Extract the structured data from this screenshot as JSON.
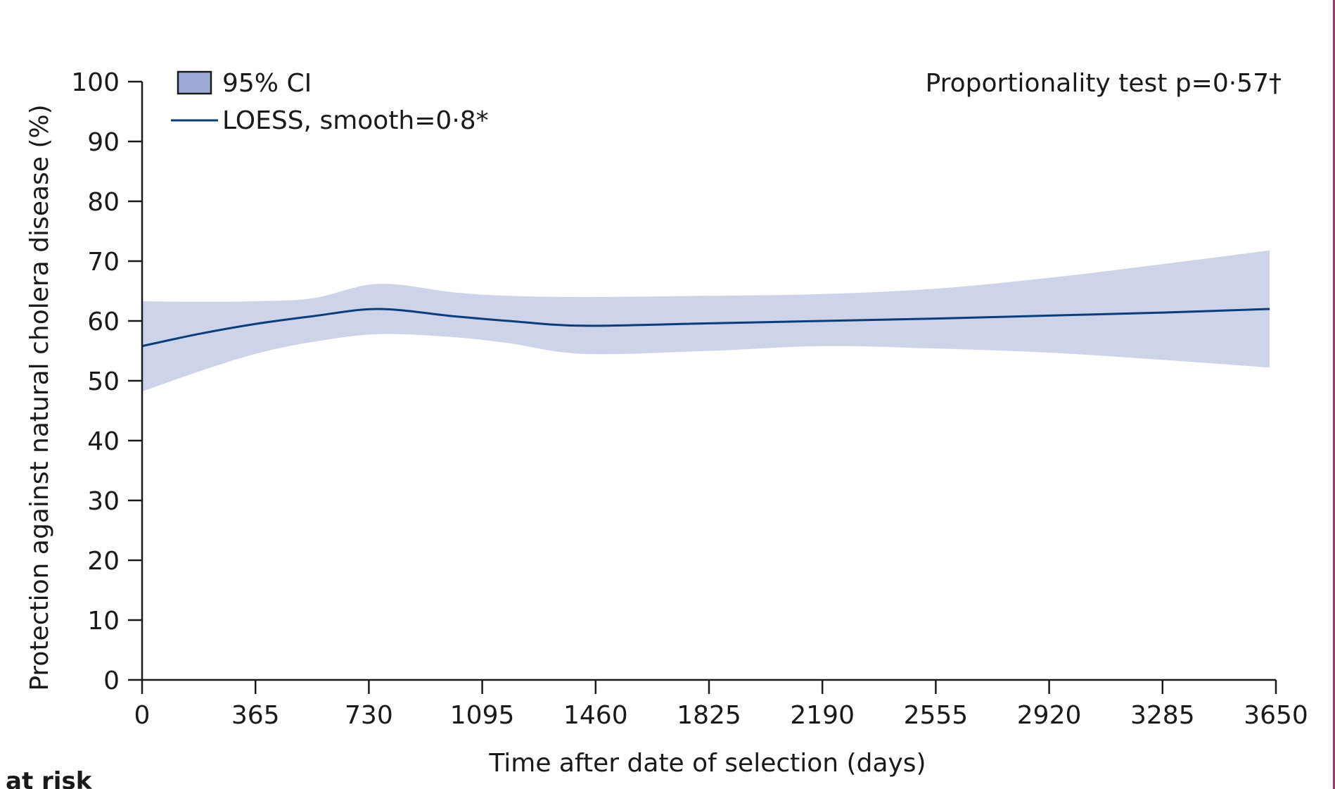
{
  "chart_data": {
    "type": "line",
    "title": "",
    "xlabel": "Time after date of selection (days)",
    "ylabel": "Protection against natural cholera disease (%)",
    "xlim": [
      0,
      3650
    ],
    "ylim": [
      0,
      100
    ],
    "x_ticks": [
      0,
      365,
      730,
      1095,
      1460,
      1825,
      2190,
      2555,
      2920,
      3285,
      3650
    ],
    "y_ticks": [
      0,
      10,
      20,
      30,
      40,
      50,
      60,
      70,
      80,
      90,
      100
    ],
    "legend": [
      {
        "key": "ci",
        "label": "95% CI"
      },
      {
        "key": "loess",
        "label": "LOESS, smooth=0·8*"
      }
    ],
    "annotation": "Proportionality test p=0·57†",
    "series": [
      {
        "name": "LOESS, smooth=0·8*",
        "x": [
          0,
          180,
          365,
          550,
          760,
          1000,
          1180,
          1420,
          1825,
          2190,
          2555,
          2920,
          3285,
          3630
        ],
        "y": [
          55.8,
          57.8,
          59.5,
          60.8,
          62,
          60.8,
          60,
          59.2,
          59.6,
          60,
          60.4,
          60.9,
          61.4,
          62
        ]
      }
    ],
    "ci_band": {
      "x": [
        0,
        180,
        365,
        550,
        760,
        1000,
        1180,
        1420,
        1825,
        2190,
        2555,
        2920,
        3285,
        3630
      ],
      "upper": [
        63.3,
        63.2,
        63.3,
        63.8,
        66.2,
        64.8,
        64.2,
        64,
        64.2,
        64.5,
        65.4,
        67.2,
        69.5,
        71.8
      ],
      "lower": [
        48.2,
        51.5,
        54.5,
        56.5,
        57.8,
        57.3,
        56.3,
        54.5,
        55,
        55.8,
        55.4,
        54.7,
        53.5,
        52.2
      ]
    }
  },
  "footer": {
    "partial_label": "at risk"
  },
  "colors": {
    "line": "#0a3d7a",
    "ci_fill": "#cdd3e9",
    "legend_swatch": "#9eaad6",
    "axis": "#1a1a1a",
    "frame_edge": "#b0306a"
  }
}
